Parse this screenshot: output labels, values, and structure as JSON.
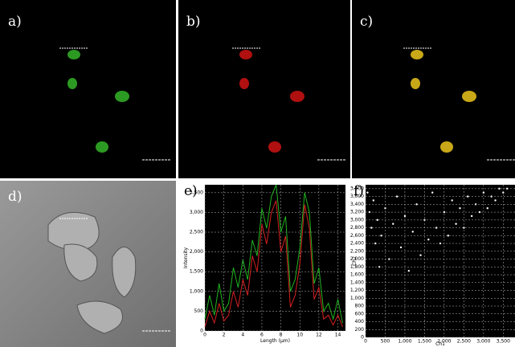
{
  "panels": [
    {
      "label": "a)"
    },
    {
      "label": "b)"
    },
    {
      "label": "c)"
    },
    {
      "label": "d)"
    },
    {
      "label": "e)"
    },
    {
      "label": "f)"
    }
  ],
  "chart_data": [
    {
      "type": "line",
      "xlabel": "Length (µm)",
      "ylabel": "Intensity",
      "x": [
        0,
        0.5,
        1,
        1.5,
        2,
        2.5,
        3,
        3.5,
        4,
        4.5,
        5,
        5.5,
        6,
        6.5,
        7,
        7.5,
        8,
        8.5,
        9,
        9.5,
        10,
        10.5,
        11,
        11.5,
        12,
        12.5,
        13,
        13.5,
        14,
        14.5
      ],
      "series": [
        {
          "color": "#22b422",
          "values": [
            300,
            900,
            400,
            1200,
            500,
            700,
            1600,
            1100,
            1800,
            1300,
            2300,
            1900,
            3100,
            2600,
            3400,
            3700,
            2500,
            2900,
            1000,
            1300,
            2100,
            3500,
            3000,
            1200,
            1600,
            500,
            700,
            300,
            800,
            200
          ]
        },
        {
          "color": "#d42020",
          "values": [
            100,
            500,
            200,
            700,
            250,
            400,
            1000,
            600,
            1300,
            900,
            1900,
            1500,
            2700,
            2200,
            3000,
            3300,
            2000,
            2400,
            600,
            900,
            1700,
            3200,
            2600,
            800,
            1100,
            300,
            400,
            150,
            400,
            100
          ]
        }
      ],
      "xlim": [
        0,
        14.8
      ],
      "ylim": [
        0,
        3700
      ],
      "xticks": [
        0,
        2,
        4,
        6,
        8,
        10,
        12,
        14
      ],
      "yticks": [
        0,
        500,
        {
          "value": 1000,
          "label": "1,000"
        },
        {
          "value": 1500,
          "label": "1,500"
        },
        {
          "value": 2000,
          "label": "2,000"
        },
        {
          "value": 2500,
          "label": "2,500"
        },
        {
          "value": 3000,
          "label": "3,000"
        },
        {
          "value": 3500,
          "label": "3,500"
        }
      ],
      "grid": true
    },
    {
      "type": "scatter",
      "xlabel": "Ch1",
      "ylabel": "Ch2",
      "color": "#ffffff",
      "x": [
        50,
        100,
        150,
        200,
        250,
        300,
        350,
        400,
        500,
        600,
        700,
        800,
        900,
        1000,
        1100,
        1200,
        1300,
        1400,
        1500,
        1600,
        1700,
        1800,
        1900,
        2000,
        2100,
        2200,
        2300,
        2400,
        2500,
        2600,
        2700,
        2800,
        2900,
        3000,
        3100,
        3200,
        3300,
        3400,
        3500,
        3600
      ],
      "values": [
        3700,
        3200,
        2800,
        3500,
        2400,
        3000,
        1800,
        2600,
        3300,
        2000,
        2900,
        3600,
        2300,
        3100,
        1700,
        2700,
        3400,
        2100,
        3000,
        2500,
        3700,
        2800,
        2400,
        3200,
        2600,
        3500,
        2900,
        3300,
        2800,
        3600,
        3100,
        3400,
        3200,
        3700,
        3300,
        3600,
        3500,
        3800,
        3700,
        3800
      ]
    },
    {
      "type": "axes-only",
      "xlim": [
        0,
        3800
      ],
      "ylim": [
        0,
        3900
      ],
      "xticks": [
        0,
        500,
        {
          "value": 1000,
          "label": "1,000"
        },
        {
          "value": 1500,
          "label": "1,500"
        },
        {
          "value": 2000,
          "label": "2,000"
        },
        {
          "value": 2500,
          "label": "2,500"
        },
        {
          "value": 3000,
          "label": "3,000"
        },
        {
          "value": 3500,
          "label": "3,500"
        }
      ],
      "yticks": [
        0,
        200,
        400,
        600,
        800,
        {
          "value": 1000,
          "label": "1,000"
        },
        {
          "value": 1200,
          "label": "1,200"
        },
        {
          "value": 1400,
          "label": "1,400"
        },
        {
          "value": 1600,
          "label": "1,600"
        },
        {
          "value": 1800,
          "label": "1,800"
        },
        {
          "value": 2000,
          "label": "2,000"
        },
        {
          "value": 2200,
          "label": "2,200"
        },
        {
          "value": 2400,
          "label": "2,400"
        },
        {
          "value": 2600,
          "label": "2,600"
        },
        {
          "value": 2800,
          "label": "2,800"
        },
        {
          "value": 3000,
          "label": "3,000"
        },
        {
          "value": 3200,
          "label": "3,200"
        },
        {
          "value": 3400,
          "label": "3,400"
        },
        {
          "value": 3600,
          "label": "3,600"
        },
        {
          "value": 3800,
          "label": "3,800"
        }
      ],
      "grid": true
    }
  ]
}
